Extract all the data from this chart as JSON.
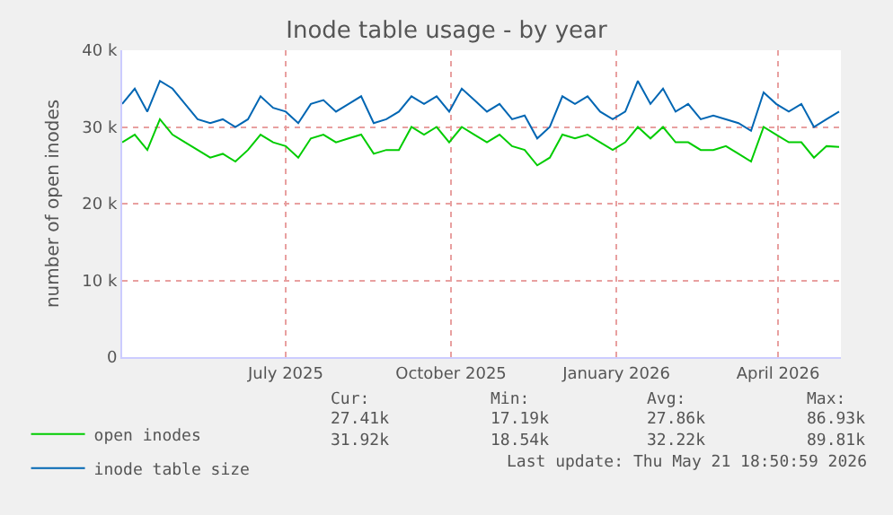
{
  "chart_data": {
    "type": "line",
    "title": "Inode table usage - by year",
    "ylabel": "number of open inodes",
    "x": [
      "2025-04-16",
      "2025-04-23",
      "2025-04-30",
      "2025-05-07",
      "2025-05-14",
      "2025-05-21",
      "2025-05-28",
      "2025-06-04",
      "2025-06-11",
      "2025-06-18",
      "2025-06-25",
      "2025-07-02",
      "2025-07-09",
      "2025-07-16",
      "2025-07-23",
      "2025-07-30",
      "2025-08-06",
      "2025-08-13",
      "2025-08-20",
      "2025-08-27",
      "2025-09-03",
      "2025-09-10",
      "2025-09-17",
      "2025-09-24",
      "2025-10-01",
      "2025-10-08",
      "2025-10-15",
      "2025-10-22",
      "2025-10-29",
      "2025-11-05",
      "2025-11-12",
      "2025-11-19",
      "2025-11-26",
      "2025-12-03",
      "2025-12-10",
      "2025-12-17",
      "2025-12-24",
      "2025-12-31",
      "2026-01-07",
      "2026-01-14",
      "2026-01-21",
      "2026-01-28",
      "2026-02-04",
      "2026-02-11",
      "2026-02-18",
      "2026-02-25",
      "2026-03-04",
      "2026-03-11",
      "2026-03-18",
      "2026-03-25",
      "2026-04-01",
      "2026-04-08",
      "2026-04-15",
      "2026-04-22",
      "2026-04-29",
      "2026-05-06",
      "2026-05-13",
      "2026-05-20"
    ],
    "series": [
      {
        "name": "open inodes",
        "color": "#00cc00",
        "values": [
          28000,
          29000,
          27000,
          31000,
          29000,
          28000,
          27000,
          26000,
          26500,
          25500,
          27000,
          29000,
          28000,
          27500,
          26000,
          28500,
          29000,
          28000,
          28500,
          29000,
          26500,
          27000,
          27000,
          30000,
          29000,
          30000,
          28000,
          30000,
          29000,
          28000,
          29000,
          27500,
          27000,
          25000,
          26000,
          29000,
          28500,
          29000,
          28000,
          27000,
          28000,
          30000,
          28500,
          30000,
          28000,
          28000,
          27000,
          27000,
          27500,
          26500,
          25500,
          30000,
          29000,
          28000,
          28000,
          26000,
          27500,
          27400
        ]
      },
      {
        "name": "inode table size",
        "color": "#0066b3",
        "values": [
          33000,
          35000,
          32000,
          36000,
          35000,
          33000,
          31000,
          30500,
          31000,
          30000,
          31000,
          34000,
          32500,
          32000,
          30500,
          33000,
          33500,
          32000,
          33000,
          34000,
          30500,
          31000,
          32000,
          34000,
          33000,
          34000,
          32000,
          35000,
          33500,
          32000,
          33000,
          31000,
          31500,
          28500,
          30000,
          34000,
          33000,
          34000,
          32000,
          31000,
          32000,
          36000,
          33000,
          35000,
          32000,
          33000,
          31000,
          31500,
          31000,
          30500,
          29500,
          34500,
          33000,
          32000,
          33000,
          30000,
          31000,
          32000
        ]
      }
    ],
    "xlim": [
      "2025-04-16",
      "2026-05-21"
    ],
    "xticks": [
      {
        "value": "2025-07-16",
        "label": "July 2025"
      },
      {
        "value": "2025-10-16",
        "label": "October 2025"
      },
      {
        "value": "2026-01-16",
        "label": "January 2026"
      },
      {
        "value": "2026-04-16",
        "label": "April 2026"
      }
    ],
    "ylim": [
      0,
      40000
    ],
    "yticks": [
      {
        "value": 0,
        "label": "0"
      },
      {
        "value": 10000,
        "label": "10 k"
      },
      {
        "value": 20000,
        "label": "20 k"
      },
      {
        "value": 30000,
        "label": "30 k"
      },
      {
        "value": 40000,
        "label": "40 k"
      }
    ],
    "grid": true,
    "legend": "bottom left",
    "marker": "none",
    "line_style": "solid",
    "annotations": [
      "Cur:",
      "Min:",
      "Avg:",
      "Max:",
      "27.41k",
      "17.19k",
      "27.86k",
      "86.93k",
      "31.92k",
      "18.54k",
      "32.22k",
      "89.81k",
      "Last update: Thu May 21 18:50:59 2026"
    ]
  }
}
